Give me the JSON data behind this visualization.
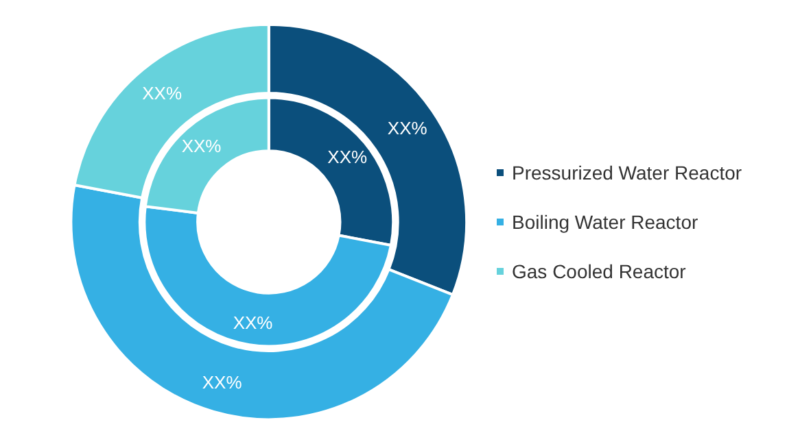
{
  "chart_data": {
    "type": "donut",
    "categories": [
      "Pressurized Water Reactor",
      "Boiling Water Reactor",
      "Gas Cooled Reactor"
    ],
    "colors": [
      "#0b4f7c",
      "#35b0e4",
      "#66d2dc"
    ],
    "series": [
      {
        "values": [
          28,
          49,
          23
        ],
        "value_labels": [
          "XX%",
          "XX%",
          "XX%"
        ]
      },
      {
        "values": [
          31,
          47,
          22
        ],
        "value_labels": [
          "XX%",
          "XX%",
          "XX%"
        ]
      }
    ],
    "legend": "right"
  }
}
